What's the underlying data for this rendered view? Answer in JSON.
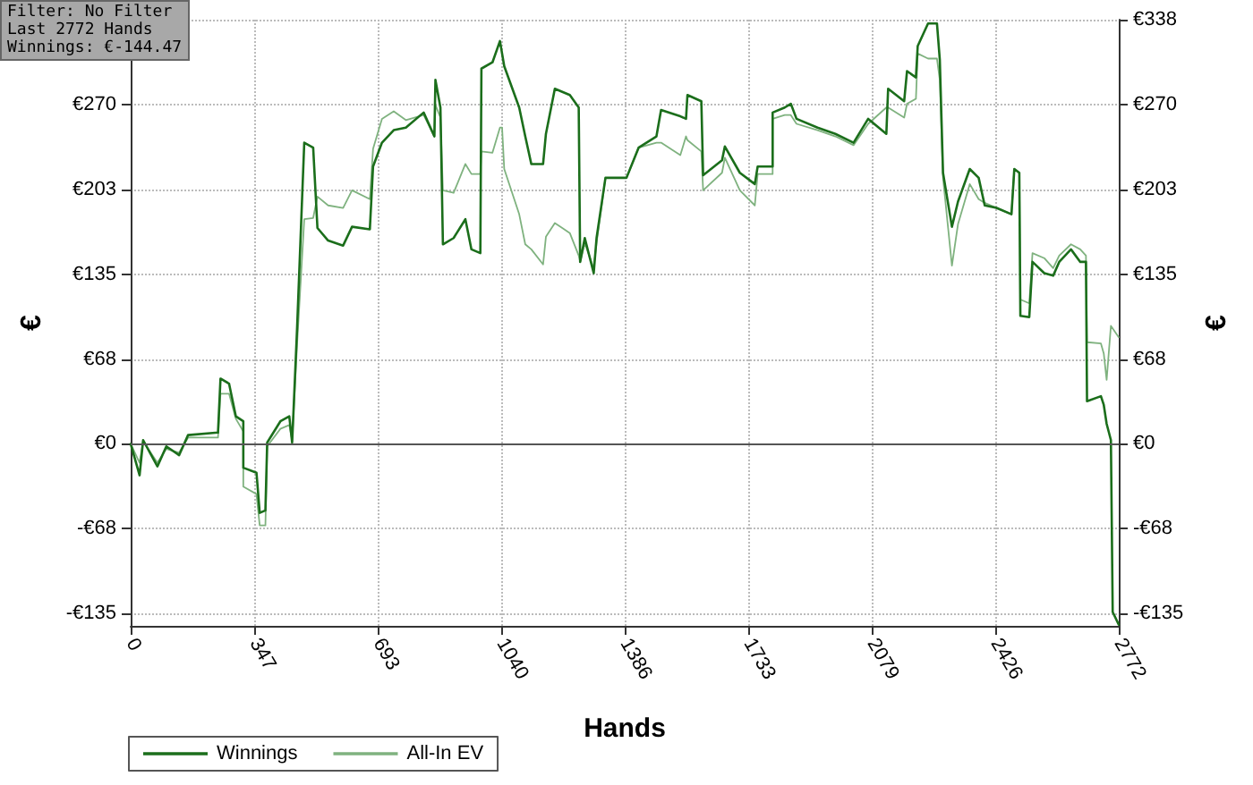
{
  "chart_data": {
    "type": "line",
    "xlabel": "Hands",
    "ylabel": "€",
    "y2label": "€",
    "annotations": [
      "Filter: No Filter",
      "Last  2772 Hands",
      "Winnings: €-144.47"
    ],
    "xlim": [
      0,
      2772
    ],
    "xticks": [
      0,
      {
        "value": 346.5,
        "label": "347"
      },
      693,
      {
        "value": 1039.5,
        "label": "1040"
      },
      1386,
      {
        "value": 1732.5,
        "label": "1733"
      },
      2079,
      {
        "value": 2425.5,
        "label": "2426"
      },
      2772
    ],
    "ylim": [
      -145,
      338
    ],
    "yticks": [
      {
        "value": -135.2,
        "label": "-€135"
      },
      {
        "value": -67.6,
        "label": "-€68"
      },
      {
        "value": 0,
        "label": "€0"
      },
      {
        "value": 67.6,
        "label": "€68"
      },
      {
        "value": 135.2,
        "label": "€135"
      },
      {
        "value": 202.8,
        "label": "€203"
      },
      {
        "value": 270.4,
        "label": "€270"
      },
      {
        "value": 338,
        "label": null
      }
    ],
    "y2lim": [
      -145,
      338
    ],
    "y2ticks": [
      {
        "value": -135.2,
        "label": "-€135"
      },
      {
        "value": -67.6,
        "label": "-€68"
      },
      {
        "value": 0,
        "label": "€0"
      },
      {
        "value": 67.6,
        "label": "€68"
      },
      {
        "value": 135.2,
        "label": "€135"
      },
      {
        "value": 202.8,
        "label": "€203"
      },
      {
        "value": 270.4,
        "label": "€270"
      },
      {
        "value": 338,
        "label": "€338"
      }
    ],
    "ref_lines": [
      {
        "axis": "y",
        "value": 0,
        "color": "#555555"
      }
    ],
    "grid": true,
    "legend": "bottom left",
    "marker": "none",
    "series": [
      {
        "name": "Winnings",
        "color": "#1b6e1b",
        "x": [
          0,
          25,
          35,
          75,
          100,
          136,
          161,
          245,
          252,
          276,
          295,
          316,
          316,
          353,
          362,
          378,
          383,
          420,
          445,
          453,
          467,
          487,
          512,
          524,
          554,
          596,
          621,
          671,
          680,
          705,
          738,
          772,
          822,
          852,
          855,
          869,
          876,
          906,
          939,
          956,
          981,
          984,
          1015,
          1036,
          1048,
          1090,
          1107,
          1124,
          1157,
          1165,
          1190,
          1232,
          1257,
          1261,
          1274,
          1299,
          1307,
          1332,
          1391,
          1425,
          1475,
          1488,
          1542,
          1558,
          1562,
          1601,
          1606,
          1659,
          1667,
          1709,
          1751,
          1759,
          1801,
          1801,
          1835,
          1852,
          1868,
          1927,
          1977,
          2028,
          2069,
          2120,
          2125,
          2170,
          2178,
          2203,
          2208,
          2237,
          2262,
          2270,
          2279,
          2304,
          2321,
          2354,
          2379,
          2396,
          2429,
          2471,
          2479,
          2493,
          2496,
          2521,
          2530,
          2563,
          2588,
          2605,
          2638,
          2664,
          2680,
          2683,
          2722,
          2730,
          2738,
          2750,
          2755,
          2772
        ],
        "values": [
          0,
          -25,
          3,
          -18,
          -2,
          -9,
          7,
          9,
          52,
          48,
          22,
          18,
          -19,
          -23,
          -55,
          -53,
          1,
          18,
          22,
          1,
          93,
          240,
          236,
          172,
          162,
          158,
          173,
          171,
          221,
          240,
          250,
          252,
          264,
          245,
          290,
          268,
          159,
          164,
          179,
          155,
          152,
          299,
          304,
          321,
          301,
          268,
          245,
          223,
          223,
          247,
          283,
          278,
          268,
          145,
          164,
          136,
          164,
          212,
          212,
          236,
          245,
          266,
          261,
          259,
          278,
          273,
          214,
          226,
          237,
          216,
          207,
          221,
          221,
          264,
          268,
          271,
          259,
          252,
          247,
          240,
          259,
          247,
          283,
          273,
          297,
          292,
          317,
          335,
          335,
          306,
          216,
          173,
          193,
          219,
          212,
          190,
          188,
          183,
          219,
          216,
          102,
          101,
          145,
          136,
          134,
          145,
          155,
          145,
          145,
          34,
          38,
          31,
          16,
          3,
          -134,
          -144
        ]
      },
      {
        "name": "All-In EV",
        "color": "#7fb27f",
        "x": [
          0,
          25,
          35,
          75,
          100,
          136,
          161,
          245,
          252,
          276,
          295,
          316,
          316,
          353,
          362,
          378,
          383,
          420,
          445,
          453,
          467,
          487,
          512,
          524,
          554,
          596,
          621,
          671,
          680,
          705,
          738,
          772,
          822,
          852,
          855,
          869,
          876,
          906,
          939,
          956,
          981,
          984,
          1015,
          1036,
          1042,
          1048,
          1090,
          1107,
          1124,
          1157,
          1165,
          1190,
          1232,
          1257,
          1261,
          1274,
          1299,
          1307,
          1332,
          1391,
          1425,
          1475,
          1488,
          1542,
          1558,
          1562,
          1601,
          1606,
          1659,
          1667,
          1709,
          1751,
          1759,
          1801,
          1801,
          1835,
          1852,
          1868,
          1927,
          1977,
          2028,
          2069,
          2120,
          2125,
          2170,
          2178,
          2203,
          2208,
          2237,
          2262,
          2270,
          2279,
          2304,
          2321,
          2354,
          2379,
          2396,
          2429,
          2471,
          2479,
          2493,
          2496,
          2521,
          2530,
          2563,
          2588,
          2605,
          2638,
          2664,
          2680,
          2683,
          2722,
          2730,
          2738,
          2750,
          2772
        ],
        "values": [
          0,
          -15,
          2,
          -15,
          -4,
          -7,
          5,
          5,
          40,
          40,
          20,
          10,
          -34,
          -40,
          -65,
          -65,
          -2,
          12,
          15,
          3,
          80,
          179,
          180,
          197,
          190,
          188,
          202,
          195,
          235,
          259,
          265,
          258,
          262,
          245,
          270,
          260,
          202,
          200,
          223,
          215,
          215,
          233,
          232,
          252,
          252,
          219,
          183,
          159,
          155,
          143,
          165,
          176,
          168,
          150,
          145,
          160,
          140,
          160,
          212,
          212,
          236,
          240,
          240,
          230,
          245,
          242,
          233,
          202,
          216,
          228,
          202,
          190,
          215,
          215,
          259,
          262,
          262,
          255,
          250,
          245,
          238,
          255,
          268,
          268,
          260,
          271,
          275,
          311,
          307,
          307,
          290,
          212,
          142,
          175,
          207,
          195,
          192,
          188,
          183,
          219,
          216,
          115,
          112,
          152,
          148,
          140,
          150,
          159,
          155,
          150,
          81,
          80,
          72,
          51,
          94,
          85
        ]
      }
    ]
  }
}
